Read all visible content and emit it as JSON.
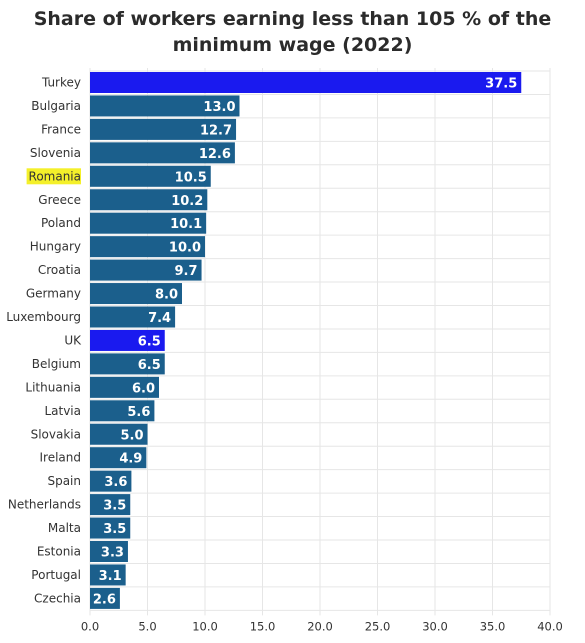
{
  "chart_data": {
    "type": "bar",
    "orientation": "horizontal",
    "title_lines": [
      "Share of workers earning less than 105 % of the",
      "minimum wage (2022)"
    ],
    "categories": [
      "Turkey",
      "Bulgaria",
      "France",
      "Slovenia",
      "Romania",
      "Greece",
      "Poland",
      "Hungary",
      "Croatia",
      "Germany",
      "Luxembourg",
      "UK",
      "Belgium",
      "Lithuania",
      "Latvia",
      "Slovakia",
      "Ireland",
      "Spain",
      "Netherlands",
      "Malta",
      "Estonia",
      "Portugal",
      "Czechia"
    ],
    "values": [
      37.5,
      13.0,
      12.7,
      12.6,
      10.5,
      10.2,
      10.1,
      10.0,
      9.7,
      8.0,
      7.4,
      6.5,
      6.5,
      6.0,
      5.6,
      5.0,
      4.9,
      3.6,
      3.5,
      3.5,
      3.3,
      3.1,
      2.6
    ],
    "value_labels": [
      "37.5",
      "13.0",
      "12.7",
      "12.6",
      "10.5",
      "10.2",
      "10.1",
      "10.0",
      "9.7",
      "8.0",
      "7.4",
      "6.5",
      "6.5",
      "6.0",
      "5.6",
      "5.0",
      "4.9",
      "3.6",
      "3.5",
      "3.5",
      "3.3",
      "3.1",
      "2.6"
    ],
    "xlim": [
      0,
      40
    ],
    "x_ticks": [
      "0.0",
      "5.0",
      "10.0",
      "15.0",
      "20.0",
      "25.0",
      "30.0",
      "35.0",
      "40.0"
    ],
    "grid": true,
    "highlighted_bars": [
      "Turkey",
      "UK"
    ],
    "highlighted_label": "Romania",
    "colors": {
      "bar": "#1b5f8c",
      "highlight_bar": "#1a1aef",
      "label_highlight": "#f4f02a",
      "grid": "#e6e6e6"
    }
  }
}
